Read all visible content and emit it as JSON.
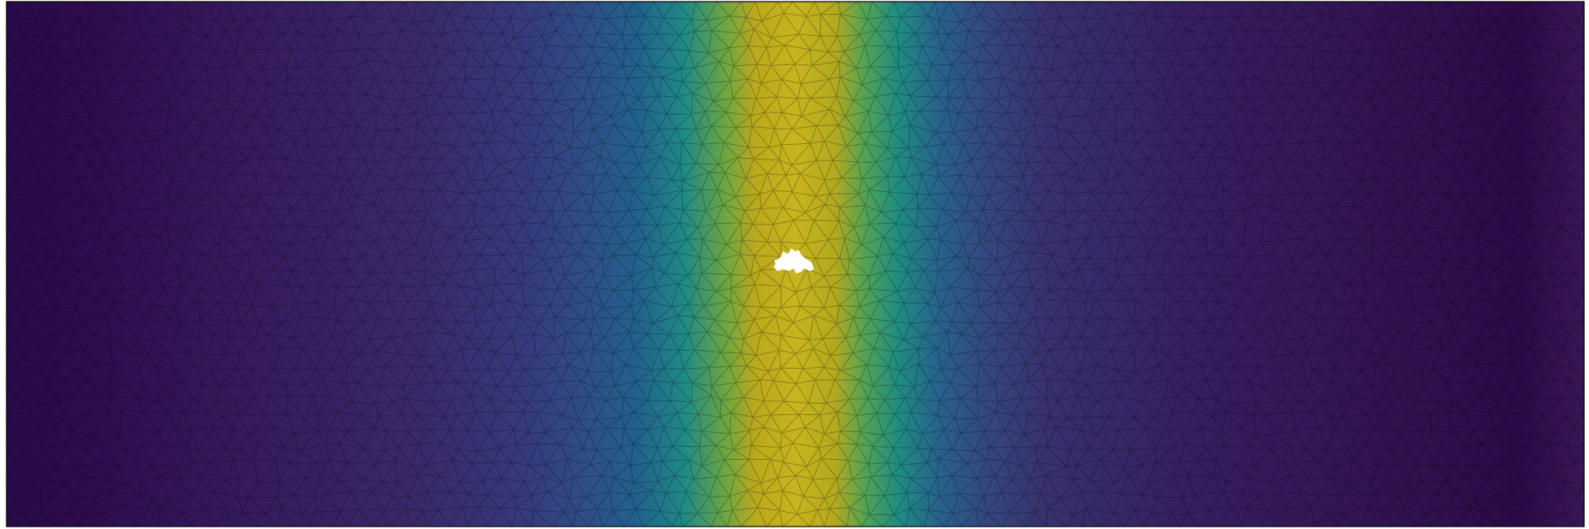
{
  "figure": {
    "colormap": [
      "#440154",
      "#482878",
      "#3e4989",
      "#31688e",
      "#26828e",
      "#1f9e89",
      "#35b779",
      "#6ece58",
      "#b5de2b",
      "#c8b91e"
    ],
    "background_color": "#ffffff",
    "border_color": "#000000",
    "mesh_line_color": "#000000",
    "hole_color": "#ffffff"
  }
}
